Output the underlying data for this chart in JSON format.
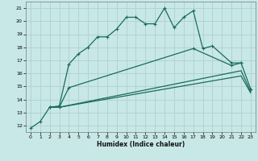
{
  "xlabel": "Humidex (Indice chaleur)",
  "xlim": [
    -0.5,
    23.5
  ],
  "ylim": [
    11.5,
    21.5
  ],
  "xticks": [
    0,
    1,
    2,
    3,
    4,
    5,
    6,
    7,
    8,
    9,
    10,
    11,
    12,
    13,
    14,
    15,
    16,
    17,
    18,
    19,
    20,
    21,
    22,
    23
  ],
  "yticks": [
    12,
    13,
    14,
    15,
    16,
    17,
    18,
    19,
    20,
    21
  ],
  "bg_color": "#c8e8e8",
  "grid_color": "#b0d0d0",
  "line_color": "#1a6b5a",
  "series": [
    {
      "x": [
        0,
        1,
        2,
        3,
        4,
        5,
        6,
        7,
        8,
        9,
        10,
        11,
        12,
        13,
        14,
        15,
        16,
        17,
        18,
        19,
        21,
        22
      ],
      "y": [
        11.8,
        12.3,
        13.4,
        13.5,
        16.7,
        17.5,
        18.0,
        18.8,
        18.8,
        19.4,
        20.3,
        20.3,
        19.8,
        19.8,
        21.0,
        19.5,
        20.3,
        20.8,
        17.9,
        18.1,
        16.8,
        16.8
      ],
      "marker": true
    },
    {
      "x": [
        2,
        3,
        4,
        17,
        21,
        22,
        23
      ],
      "y": [
        13.4,
        13.4,
        14.9,
        17.9,
        16.6,
        16.8,
        14.8
      ],
      "marker": true
    },
    {
      "x": [
        2,
        3,
        22,
        23
      ],
      "y": [
        13.4,
        13.4,
        16.2,
        14.6
      ],
      "marker": false
    },
    {
      "x": [
        2,
        3,
        22,
        23
      ],
      "y": [
        13.4,
        13.4,
        15.8,
        14.5
      ],
      "marker": false
    }
  ]
}
